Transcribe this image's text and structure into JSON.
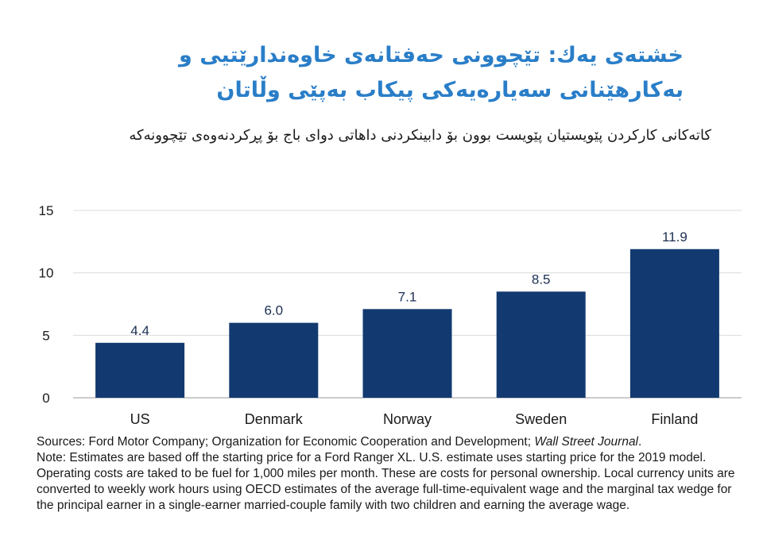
{
  "title_lines": [
    "خشتەی یەك: تێچوونی حەفتانەی خاوەندارێتیی و",
    "بەکارهێنانی سەیارەیەکی پیکاب بەپێی وڵاتان"
  ],
  "subtitle": "کاتەکانی کارکردن پێویستیان پێویست بوون بۆ دابینکردنی داهاتی دوای باج بۆ پڕکردنەوەی تێچوونەکە",
  "footer": {
    "sources_prefix": "Sources: Ford Motor Company; Organization for Economic Cooperation and Development; ",
    "sources_journal": "Wall Street Journal",
    "sources_suffix": ".",
    "note": "Note: Estimates are based off the starting price for a Ford Ranger XL. U.S. estimate uses starting price for the 2019 model. Operating costs are taked to be fuel for 1,000 miles per month. These are costs for personal ownership. Local currency units are converted to weekly work hours using OECD estimates of the average full-time-equivalent wage and the marginal tax wedge for the principal earner in a single-earner married-couple family with two children and earning the average wage."
  },
  "chart_data": {
    "type": "bar",
    "categories": [
      "US",
      "Denmark",
      "Norway",
      "Sweden",
      "Finland"
    ],
    "values": [
      4.4,
      6.0,
      7.1,
      8.5,
      11.9
    ],
    "data_labels": [
      "4.4",
      "6.0",
      "7.1",
      "8.5",
      "11.9"
    ],
    "ylim": [
      0,
      15
    ],
    "yticks": [
      0,
      5,
      10,
      15
    ],
    "grid": true,
    "bar_color": "#123a70"
  }
}
